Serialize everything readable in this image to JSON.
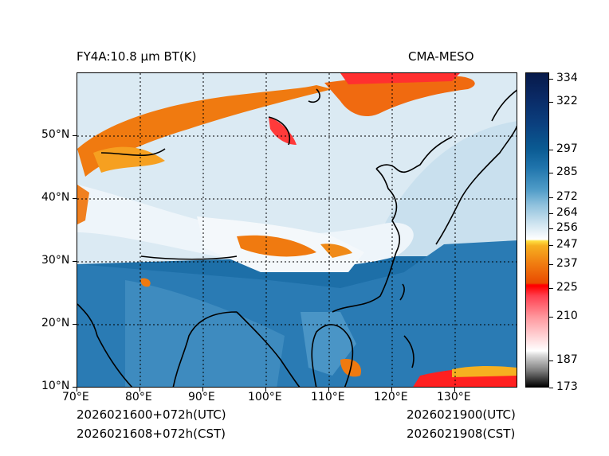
{
  "title_left": "FY4A:10.8 µm BT(K)",
  "title_right": "CMA-MESO",
  "x_ticks": [
    "70°E",
    "80°E",
    "90°E",
    "100°E",
    "110°E",
    "120°E",
    "130°E"
  ],
  "y_ticks": [
    "10°N",
    "20°N",
    "30°N",
    "40°N",
    "50°N"
  ],
  "colorbar": {
    "labels": [
      "334",
      "322",
      "297",
      "285",
      "272",
      "264",
      "256",
      "247",
      "237",
      "225",
      "210",
      "187",
      "173"
    ]
  },
  "footer": {
    "left_utc": "2026021600+072h(UTC)",
    "left_cst": "2026021608+072h(CST)",
    "right_utc": "2026021900(UTC)",
    "right_cst": "2026021908(CST)"
  },
  "colors": {
    "ocean_blue": "#1f74ac",
    "cloud_white": "#eaf3f8",
    "cold_cloud_orange": "#f07a10",
    "very_cold_red": "#ff2020"
  }
}
